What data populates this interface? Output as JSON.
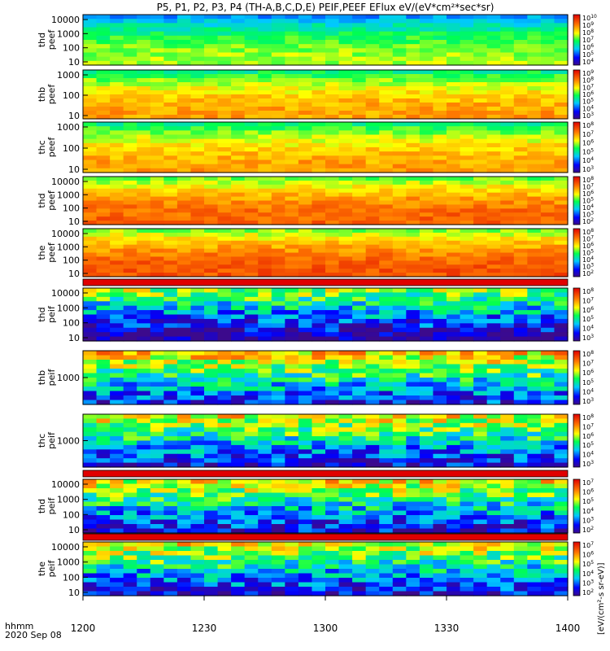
{
  "title": "P5, P1, P2, P3, P4 (TH-A,B,C,D,E) PEIF,PEEF EFlux eV/(eV*cm²*sec*sr)",
  "time_label": "hhmm",
  "date_label": "2020 Sep 08",
  "colorbar_label": "[eV/(cm²-s sr-eV)]",
  "chart_data": {
    "type": "heatmap",
    "x_axis": {
      "range": [
        "1200",
        "1400"
      ],
      "ticks": [
        "1200",
        "1230",
        "1300",
        "1330",
        "1400"
      ],
      "unit": "hhmm"
    },
    "panels": [
      {
        "label1": "thd",
        "label2": "peef",
        "yticks": [
          "10",
          "100",
          "1000",
          "10000"
        ],
        "cbar_exps": [
          "4",
          "5",
          "6",
          "7",
          "8",
          "9",
          "10"
        ],
        "level": 0.58
      },
      {
        "label1": "thb",
        "label2": "peef",
        "yticks": [
          "10",
          "100",
          "1000"
        ],
        "cbar_exps": [
          "3",
          "4",
          "5",
          "6",
          "7",
          "8",
          "9"
        ],
        "level": 0.75
      },
      {
        "label1": "thc",
        "label2": "peef",
        "yticks": [
          "10",
          "100",
          "1000"
        ],
        "cbar_exps": [
          "3",
          "4",
          "5",
          "6",
          "7",
          "8"
        ],
        "level": 0.75
      },
      {
        "label1": "thd",
        "label2": "peef",
        "yticks": [
          "10",
          "100",
          "1000",
          "10000"
        ],
        "cbar_exps": [
          "2",
          "3",
          "4",
          "5",
          "6",
          "7",
          "8"
        ],
        "level": 0.84
      },
      {
        "label1": "the",
        "label2": "peef",
        "yticks": [
          "10",
          "100",
          "1000",
          "10000"
        ],
        "cbar_exps": [
          "2",
          "3",
          "4",
          "5",
          "6",
          "7",
          "8"
        ],
        "level": 0.86
      },
      {
        "label1": "thd",
        "label2": "peif",
        "yticks": [
          "10",
          "100",
          "1000",
          "10000"
        ],
        "cbar_exps": [
          "3",
          "4",
          "5",
          "6",
          "7",
          "8"
        ],
        "level": 0.35
      },
      {
        "label1": "thb",
        "label2": "peif",
        "yticks": [
          "1000"
        ],
        "cbar_exps": [
          "3",
          "4",
          "5",
          "6",
          "7",
          "8"
        ],
        "level": 0.5
      },
      {
        "label1": "thc",
        "label2": "peif",
        "yticks": [
          "1000"
        ],
        "cbar_exps": [
          "3",
          "4",
          "5",
          "6",
          "7",
          "8"
        ],
        "level": 0.45
      },
      {
        "label1": "thd",
        "label2": "peif",
        "yticks": [
          "10",
          "100",
          "1000",
          "10000"
        ],
        "cbar_exps": [
          "2",
          "3",
          "4",
          "5",
          "6",
          "7"
        ],
        "level": 0.45
      },
      {
        "label1": "the",
        "label2": "peif",
        "yticks": [
          "10",
          "100",
          "1000",
          "10000"
        ],
        "cbar_exps": [
          "2",
          "3",
          "4",
          "5",
          "6",
          "7"
        ],
        "level": 0.45
      }
    ]
  }
}
